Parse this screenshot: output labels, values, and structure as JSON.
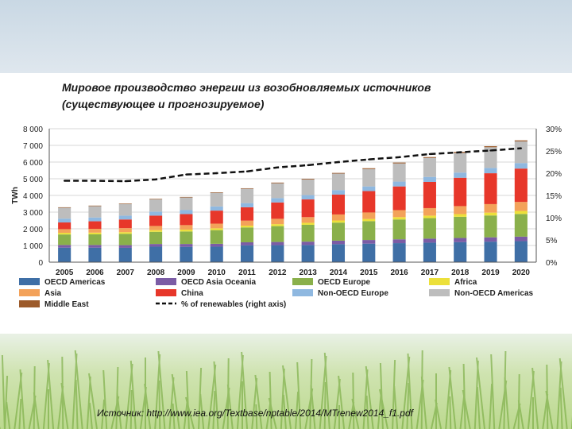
{
  "slide": {
    "source_note": "Источник: http://www.iea.org/Textbase/nptable/2014/MTrenew2014_f1.pdf"
  },
  "chart_data": {
    "type": "bar",
    "stacked": true,
    "title": "Мировое производство энергии из возобновляемых источников (существующее и прогнозируемое)",
    "ylabel": "TWh",
    "ylim": [
      0,
      8000
    ],
    "y_ticks": [
      "0",
      "1 000",
      "2 000",
      "3 000",
      "4 000",
      "5 000",
      "6 000",
      "7 000",
      "8 000"
    ],
    "y2lim": [
      0,
      30
    ],
    "y2_ticks": [
      "0%",
      "5%",
      "10%",
      "15%",
      "20%",
      "25%",
      "30%"
    ],
    "grid": true,
    "legend_position": "bottom",
    "categories": [
      "2005",
      "2006",
      "2007",
      "2008",
      "2009",
      "2010",
      "2011",
      "2012",
      "2013",
      "2014",
      "2015",
      "2016",
      "2017",
      "2018",
      "2019",
      "2020"
    ],
    "series": [
      {
        "name": "OECD Americas",
        "color": "#3f6fa6",
        "values": [
          870,
          870,
          860,
          930,
          920,
          930,
          1010,
          1020,
          1030,
          1080,
          1110,
          1140,
          1170,
          1200,
          1230,
          1260
        ]
      },
      {
        "name": "OECD Asia Oceania",
        "color": "#7b5ca5",
        "values": [
          160,
          160,
          160,
          160,
          170,
          170,
          180,
          190,
          200,
          210,
          220,
          230,
          240,
          250,
          260,
          270
        ]
      },
      {
        "name": "OECD Europe",
        "color": "#8ab04b",
        "values": [
          630,
          640,
          680,
          730,
          750,
          820,
          890,
          950,
          1010,
          1080,
          1130,
          1190,
          1230,
          1270,
          1310,
          1360
        ]
      },
      {
        "name": "Africa",
        "color": "#ece03a",
        "values": [
          100,
          100,
          100,
          100,
          110,
          110,
          110,
          120,
          120,
          130,
          130,
          140,
          150,
          160,
          170,
          180
        ]
      },
      {
        "name": "Asia",
        "color": "#f3a25a",
        "values": [
          220,
          230,
          240,
          250,
          270,
          280,
          300,
          320,
          340,
          360,
          390,
          420,
          450,
          480,
          510,
          540
        ]
      },
      {
        "name": "China",
        "color": "#e7372a",
        "values": [
          400,
          450,
          520,
          620,
          660,
          780,
          800,
          980,
          1060,
          1190,
          1280,
          1420,
          1570,
          1700,
          1850,
          2000
        ]
      },
      {
        "name": "Non-OECD Europe",
        "color": "#8fb8e0",
        "values": [
          230,
          230,
          230,
          240,
          240,
          250,
          250,
          260,
          260,
          270,
          280,
          290,
          300,
          310,
          320,
          330
        ]
      },
      {
        "name": "Non-OECD Americas",
        "color": "#bdbdbd",
        "values": [
          650,
          680,
          700,
          740,
          760,
          820,
          860,
          890,
          940,
          990,
          1040,
          1090,
          1140,
          1180,
          1240,
          1300
        ]
      },
      {
        "name": "Middle East",
        "color": "#9c5a2a",
        "values": [
          30,
          30,
          30,
          30,
          30,
          30,
          30,
          40,
          40,
          40,
          50,
          50,
          50,
          60,
          60,
          60
        ]
      }
    ],
    "line_series": {
      "name": "% of renewables (right axis)",
      "axis": "right",
      "style": "dashed",
      "color": "#111111",
      "values": [
        18.3,
        18.3,
        18.2,
        18.6,
        19.7,
        20.0,
        20.4,
        21.3,
        21.8,
        22.5,
        23.1,
        23.6,
        24.3,
        24.7,
        25.1,
        25.6
      ]
    }
  }
}
